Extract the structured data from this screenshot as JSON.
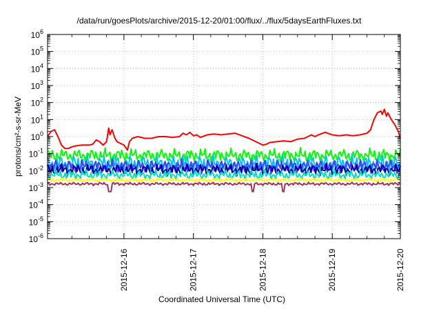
{
  "chart_data": {
    "type": "line",
    "title": "/data/run/goesPlots/archive/2015-12-20/01:00/flux/../flux/5daysEarthFluxes.txt",
    "xlabel": "Coordinated Universal Time (UTC)",
    "ylabel": "protons/cm²-s-sr-MeV",
    "yscale": "log",
    "ylim_exp": [
      -6,
      6
    ],
    "xlim_days": [
      -1.1,
      3.98
    ],
    "x_ticks": [
      {
        "day": 0,
        "label": "2015-12-16"
      },
      {
        "day": 1,
        "label": "2015-12-17"
      },
      {
        "day": 2,
        "label": "2015-12-18"
      },
      {
        "day": 3,
        "label": "2015-12-19"
      },
      {
        "day": 3.98,
        "label": "2015-12-20"
      }
    ],
    "y_ticks": [
      {
        "base": "10",
        "exp": "6"
      },
      {
        "base": "10",
        "exp": "5"
      },
      {
        "base": "10",
        "exp": "4"
      },
      {
        "base": "10",
        "exp": "3"
      },
      {
        "base": "10",
        "exp": "2"
      },
      {
        "base": "10",
        "exp": "1"
      },
      {
        "base": "10",
        "exp": "0"
      },
      {
        "base": "10",
        "exp": "-1"
      },
      {
        "base": "10",
        "exp": "-2"
      },
      {
        "base": "10",
        "exp": "-3"
      },
      {
        "base": "10",
        "exp": "-4"
      },
      {
        "base": "10",
        "exp": "-5"
      },
      {
        "base": "10",
        "exp": "-6"
      }
    ],
    "grid": true,
    "series": [
      {
        "color": "#ff0000",
        "width": 2,
        "points": [
          [
            -1.1,
            0.0
          ],
          [
            -1.05,
            0.3
          ],
          [
            -1.0,
            0.4
          ],
          [
            -0.95,
            0.0
          ],
          [
            -0.9,
            -0.5
          ],
          [
            -0.85,
            -0.7
          ],
          [
            -0.8,
            -0.7
          ],
          [
            -0.75,
            -0.6
          ],
          [
            -0.7,
            -0.55
          ],
          [
            -0.6,
            -0.5
          ],
          [
            -0.5,
            -0.5
          ],
          [
            -0.45,
            -0.45
          ],
          [
            -0.4,
            -0.2
          ],
          [
            -0.35,
            -0.3
          ],
          [
            -0.3,
            -0.5
          ],
          [
            -0.25,
            -0.3
          ],
          [
            -0.22,
            0.5
          ],
          [
            -0.2,
            0.1
          ],
          [
            -0.17,
            0.4
          ],
          [
            -0.13,
            -0.1
          ],
          [
            -0.1,
            -0.3
          ],
          [
            -0.05,
            -0.4
          ],
          [
            0.0,
            -0.5
          ],
          [
            0.05,
            -0.8
          ],
          [
            0.08,
            -0.3
          ],
          [
            0.12,
            -0.1
          ],
          [
            0.2,
            0.0
          ],
          [
            0.3,
            -0.1
          ],
          [
            0.4,
            -0.1
          ],
          [
            0.5,
            0.0
          ],
          [
            0.6,
            0.0
          ],
          [
            0.7,
            -0.05
          ],
          [
            0.8,
            0.0
          ],
          [
            0.85,
            0.2
          ],
          [
            0.9,
            0.1
          ],
          [
            0.95,
            0.25
          ],
          [
            1.0,
            0.05
          ],
          [
            1.05,
            0.1
          ],
          [
            1.1,
            -0.05
          ],
          [
            1.2,
            0.1
          ],
          [
            1.3,
            0.15
          ],
          [
            1.4,
            0.1
          ],
          [
            1.5,
            0.15
          ],
          [
            1.6,
            0.2
          ],
          [
            1.7,
            0.05
          ],
          [
            1.8,
            -0.1
          ],
          [
            1.9,
            -0.3
          ],
          [
            2.0,
            -0.5
          ],
          [
            2.05,
            -0.45
          ],
          [
            2.1,
            -0.35
          ],
          [
            2.2,
            -0.3
          ],
          [
            2.3,
            -0.25
          ],
          [
            2.4,
            -0.3
          ],
          [
            2.5,
            -0.15
          ],
          [
            2.6,
            -0.1
          ],
          [
            2.7,
            0.1
          ],
          [
            2.75,
            0.0
          ],
          [
            2.8,
            0.1
          ],
          [
            2.9,
            0.25
          ],
          [
            3.0,
            0.1
          ],
          [
            3.1,
            0.05
          ],
          [
            3.2,
            0.1
          ],
          [
            3.3,
            0.05
          ],
          [
            3.4,
            0.1
          ],
          [
            3.5,
            0.2
          ],
          [
            3.55,
            0.4
          ],
          [
            3.6,
            1.0
          ],
          [
            3.65,
            1.4
          ],
          [
            3.7,
            1.5
          ],
          [
            3.72,
            1.3
          ],
          [
            3.75,
            1.6
          ],
          [
            3.78,
            1.2
          ],
          [
            3.8,
            1.4
          ],
          [
            3.85,
            1.0
          ],
          [
            3.9,
            0.7
          ],
          [
            3.95,
            0.3
          ],
          [
            3.98,
            -0.1
          ]
        ]
      },
      {
        "color": "#00ff00",
        "width": 2,
        "base": -1.1,
        "amp": 0.35,
        "phase": 0.3
      },
      {
        "color": "#00c0ff",
        "width": 2,
        "base": -1.6,
        "amp": 0.45,
        "phase": 1.1
      },
      {
        "color": "#4040ff",
        "width": 2,
        "base": -1.75,
        "amp": 0.35,
        "phase": 2.2
      },
      {
        "color": "#0000a0",
        "width": 2,
        "base": -1.95,
        "amp": 0.3,
        "phase": 0.7
      },
      {
        "color": "#00e0c0",
        "width": 2,
        "base": -2.25,
        "amp": 0.25,
        "phase": 1.9
      },
      {
        "color": "#ffff00",
        "width": 2,
        "base": -2.55,
        "amp": 0.1,
        "phase": 0.5
      },
      {
        "color": "#a03060",
        "width": 2,
        "base": -2.78,
        "amp": 0.08,
        "phase": 1.3
      }
    ]
  }
}
